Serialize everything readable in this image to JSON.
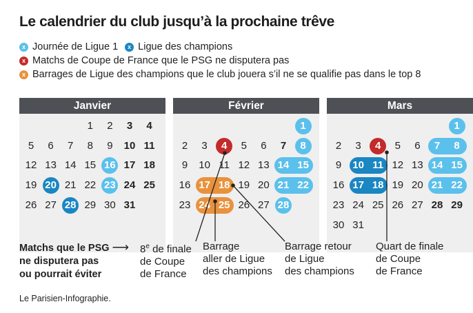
{
  "title": "Le calendrier du club jusqu’à la prochaine trêve",
  "legend": [
    {
      "text": "Journée de Ligue 1",
      "color": "#5bc0eb",
      "icon": "x-ball-icon"
    },
    {
      "text": "Ligue des champions",
      "color": "#1a86c2",
      "icon": "x-ball-icon"
    },
    {
      "text": "Matchs de Coupe de France que le PSG ne disputera pas",
      "color": "#c32b2b",
      "icon": "x-ball-icon"
    },
    {
      "text": "Barrages de Ligue des champions que le club jouera s’il ne se qualifie pas dans le top 8",
      "color": "#e8923d",
      "icon": "x-ball-icon"
    }
  ],
  "months": [
    {
      "name": "Janvier",
      "start": 3,
      "days": 31,
      "bold": [
        3,
        4,
        10,
        11,
        17,
        18,
        24,
        25,
        31
      ],
      "events": [
        {
          "day": 16,
          "type": "l1"
        },
        {
          "day": 20,
          "type": "ldc"
        },
        {
          "day": 23,
          "type": "l1"
        },
        {
          "day": 28,
          "type": "ldc"
        }
      ]
    },
    {
      "name": "Février",
      "start": 6,
      "days": 28,
      "bold": [
        7
      ],
      "events": [
        {
          "day": 1,
          "type": "l1"
        },
        {
          "day": 4,
          "type": "cdf"
        },
        {
          "day": 8,
          "type": "l1"
        },
        {
          "day": 14,
          "type": "l1"
        },
        {
          "day": 15,
          "type": "l1"
        },
        {
          "day": 17,
          "type": "barrage"
        },
        {
          "day": 18,
          "type": "barrage"
        },
        {
          "day": 21,
          "type": "l1"
        },
        {
          "day": 22,
          "type": "l1"
        },
        {
          "day": 24,
          "type": "barrage"
        },
        {
          "day": 25,
          "type": "barrage"
        },
        {
          "day": 28,
          "type": "l1"
        }
      ]
    },
    {
      "name": "Mars",
      "start": 6,
      "days": 31,
      "bold": [
        28,
        29
      ],
      "events": [
        {
          "day": 1,
          "type": "l1"
        },
        {
          "day": 4,
          "type": "cdf"
        },
        {
          "day": 7,
          "type": "l1"
        },
        {
          "day": 8,
          "type": "l1"
        },
        {
          "day": 10,
          "type": "ldc"
        },
        {
          "day": 11,
          "type": "ldc"
        },
        {
          "day": 14,
          "type": "l1"
        },
        {
          "day": 15,
          "type": "l1"
        },
        {
          "day": 17,
          "type": "ldc"
        },
        {
          "day": 18,
          "type": "ldc"
        },
        {
          "day": 21,
          "type": "l1"
        },
        {
          "day": 22,
          "type": "l1"
        }
      ]
    }
  ],
  "colors": {
    "l1": "#5bc0eb",
    "ldc": "#1a86c2",
    "cdf": "#c32b2b",
    "barrage": "#e8923d"
  },
  "note": {
    "line1": "Matchs que le PSG",
    "line2": "ne disputera pas",
    "line3": "ou pourrait éviter",
    "arrow": "⟶"
  },
  "annotations": {
    "cdf_feb": {
      "line1": "8",
      "sup": "e",
      "line1b": " de finale",
      "line2": "de Coupe",
      "line3": "de France"
    },
    "barrage_aller": {
      "line1": "Barrage",
      "line2": "aller de Ligue",
      "line3": "des champions"
    },
    "barrage_retour": {
      "line1": "Barrage retour",
      "line2": "de Ligue",
      "line3": "des champions"
    },
    "quart": {
      "line1": "Quart de finale",
      "line2": "de Coupe",
      "line3": "de France"
    }
  },
  "source": "Le Parisien-Infographie."
}
